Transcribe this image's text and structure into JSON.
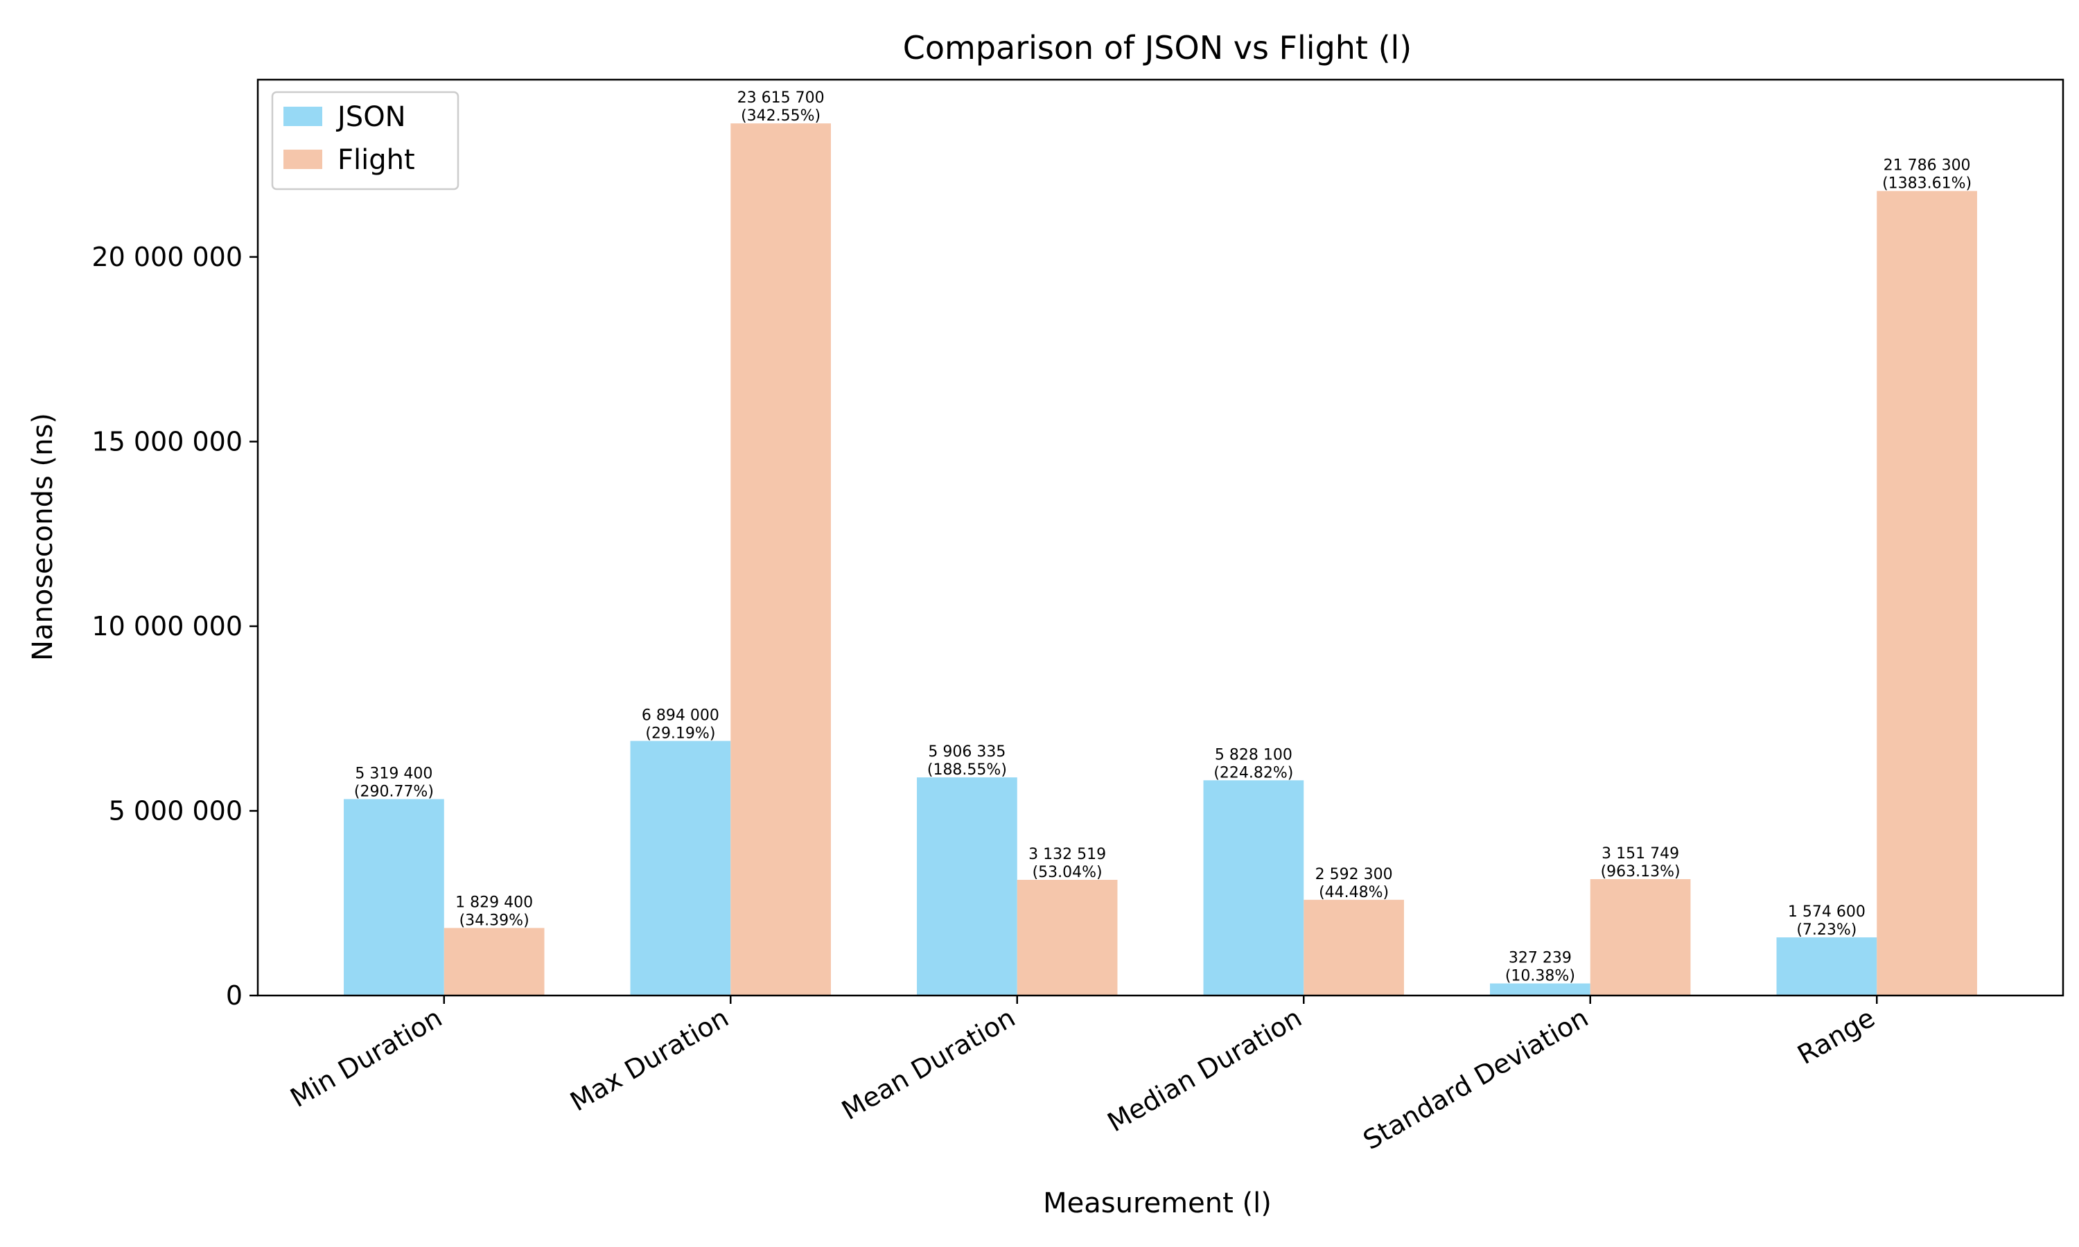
{
  "chart_data": {
    "type": "bar",
    "title": "Comparison of JSON vs Flight (l)",
    "xlabel": "Measurement (l)",
    "ylabel": "Nanoseconds (ns)",
    "categories": [
      "Min Duration",
      "Max Duration",
      "Mean Duration",
      "Median Duration",
      "Standard Deviation",
      "Range"
    ],
    "series": [
      {
        "name": "JSON",
        "color": "#97d9f5",
        "values": [
          5319400,
          6894000,
          5906335,
          5828100,
          327239,
          1574600
        ],
        "value_labels": [
          "5 319 400",
          "6 894 000",
          "5 906 335",
          "5 828 100",
          "327 239",
          "1 574 600"
        ],
        "pct_labels": [
          "(290.77%)",
          "(29.19%)",
          "(188.55%)",
          "(224.82%)",
          "(10.38%)",
          "(7.23%)"
        ]
      },
      {
        "name": "Flight",
        "color": "#f5c6ab",
        "values": [
          1829400,
          23615700,
          3132519,
          2592300,
          3151749,
          21786300
        ],
        "value_labels": [
          "1 829 400",
          "23 615 700",
          "3 132 519",
          "2 592 300",
          "3 151 749",
          "21 786 300"
        ],
        "pct_labels": [
          "(34.39%)",
          "(342.55%)",
          "(53.04%)",
          "(44.48%)",
          "(963.13%)",
          "(1383.61%)"
        ]
      }
    ],
    "yticks": [
      0,
      5000000,
      10000000,
      15000000,
      20000000
    ],
    "ytick_labels": [
      "0",
      "5 000 000",
      "10 000 000",
      "15 000 000",
      "20 000 000"
    ],
    "ylim": [
      0,
      24800000
    ],
    "grid": false,
    "legend_position": "top-left"
  }
}
